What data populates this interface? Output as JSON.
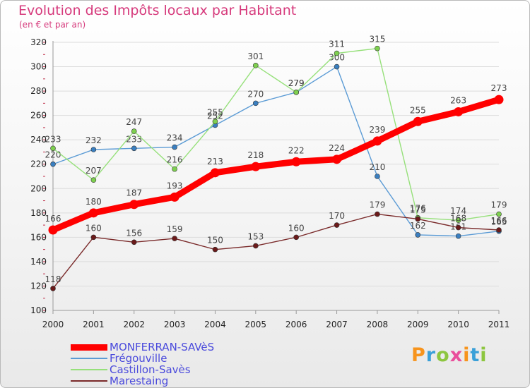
{
  "chart_data": {
    "type": "line",
    "title": "Evolution des Impôts locaux par Habitant",
    "subtitle": "(en € et par an)",
    "xlabel": "",
    "ylabel": "",
    "ylim": [
      100,
      320
    ],
    "y_ticks": [
      100,
      120,
      140,
      160,
      180,
      200,
      220,
      240,
      260,
      280,
      300,
      320
    ],
    "x": [
      "2000",
      "2001",
      "2002",
      "2003",
      "2004",
      "2005",
      "2006",
      "2007",
      "2008",
      "2009",
      "2010",
      "2011"
    ],
    "grid": "horizontal",
    "legend_position": "bottom-left",
    "series": [
      {
        "name": "Frégouville",
        "color": "#5b9bd5",
        "marker": "#3a7fc0",
        "values": [
          220,
          232,
          233,
          234,
          252,
          270,
          279,
          300,
          210,
          162,
          161,
          165
        ]
      },
      {
        "name": "Castillon-Savès",
        "color": "#96e07a",
        "marker": "#7ed04f",
        "values": [
          233,
          207,
          247,
          216,
          255,
          301,
          279,
          311,
          315,
          176,
          174,
          179
        ]
      },
      {
        "name": "Marestaing",
        "color": "#7a2a2a",
        "marker": "#6b1a1a",
        "values": [
          118,
          160,
          156,
          159,
          150,
          153,
          160,
          170,
          179,
          175,
          168,
          166
        ]
      },
      {
        "name": "MONFERRAN-SAVèS",
        "color": "#ff0000",
        "marker": "#ff0000",
        "values": [
          166,
          180,
          187,
          193,
          213,
          218,
          222,
          224,
          239,
          255,
          263,
          273
        ]
      }
    ]
  },
  "legend": [
    {
      "label": "MONFERRAN-SAVèS",
      "color": "#ff0000"
    },
    {
      "label": "Frégouville",
      "color": "#5b9bd5"
    },
    {
      "label": "Castillon-Savès",
      "color": "#96e07a"
    },
    {
      "label": "Marestaing",
      "color": "#7a2a2a"
    }
  ],
  "brand": {
    "text": "Proxiti",
    "colors": [
      "#f7941d",
      "#3aa0d8",
      "#8dc63f",
      "#e94e9b",
      "#f7941d",
      "#3aa0d8",
      "#8dc63f"
    ]
  }
}
